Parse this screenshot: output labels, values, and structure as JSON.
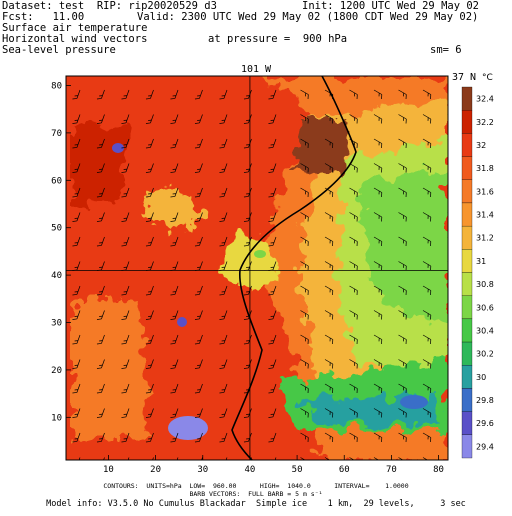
{
  "header": {
    "dataset": "Dataset: test  RIP: rip20020529 d3",
    "init": "Init: 1200 UTC Wed 29 May 02",
    "fcst": "Fcst:   11.00",
    "valid": "Valid: 2300 UTC Wed 29 May 02 (1800 CDT Wed 29 May 02)",
    "field1": "Surface air temperature",
    "field2": "Horizontal wind vectors",
    "pressure": "at pressure =  900 hPa",
    "field3": "Sea-level pressure",
    "smoothing": "sm= 6"
  },
  "map": {
    "lon_label": "101 W",
    "lat_label": "37 N",
    "x_ticks": [
      "10",
      "20",
      "30",
      "40",
      "50",
      "60",
      "70",
      "80"
    ],
    "y_ticks": [
      "10",
      "20",
      "30",
      "40",
      "50",
      "60",
      "70",
      "80"
    ],
    "crosshair_x": 40,
    "crosshair_y": 41
  },
  "legend": {
    "unit": "°C",
    "levels": [
      "32.4",
      "32.2",
      "32",
      "31.8",
      "31.6",
      "31.4",
      "31.2",
      "31",
      "30.8",
      "30.6",
      "30.4",
      "30.2",
      "30",
      "29.8",
      "29.6",
      "29.4"
    ],
    "colors": [
      "#8b3a1a",
      "#cc2200",
      "#e83a14",
      "#f05a1e",
      "#f57a28",
      "#f7952e",
      "#f4b43a",
      "#e8d840",
      "#b8e048",
      "#7cd646",
      "#46c846",
      "#2eb85a",
      "#28a0a0",
      "#3a6ec8",
      "#5a50c8",
      "#8a88e8"
    ]
  },
  "footer": {
    "contours": "CONTOURS:  UNITS=hPa  LOW=  960.00      HIGH=  1040.0      INTERVAL=    1.0000",
    "barbs": "BARB VECTORS:  FULL BARB = 5 m s⁻¹",
    "model": "Model info: V3.5.0 No Cumulus Blackadar  Simple ice    1 km,  29 levels,     3 sec"
  }
}
